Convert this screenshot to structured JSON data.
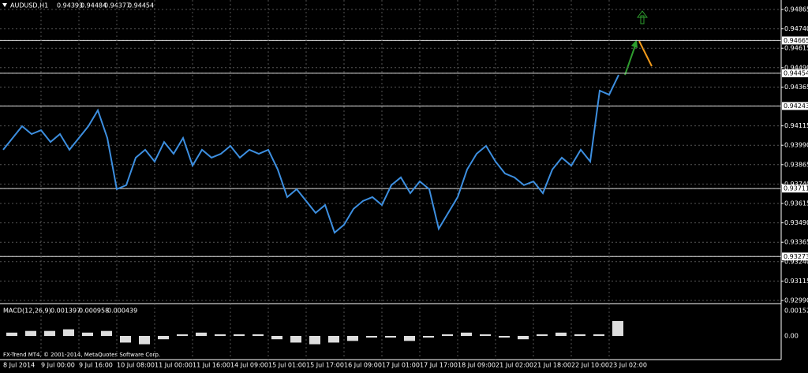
{
  "window": {
    "symbol": "AUDUSD,H1",
    "quote": [
      "0.94393",
      "0.94484",
      "0.94377",
      "0.94454"
    ]
  },
  "price_axis": {
    "labels": [
      {
        "value": 0.94865,
        "label": "0.94865"
      },
      {
        "value": 0.9474,
        "label": "0.94740"
      },
      {
        "value": 0.94665,
        "label": "0.94665",
        "line": true
      },
      {
        "value": 0.94615,
        "label": "0.94615"
      },
      {
        "value": 0.9449,
        "label": "0.94490"
      },
      {
        "value": 0.94454,
        "label": "0.94454",
        "line": true
      },
      {
        "value": 0.94365,
        "label": "0.94365"
      },
      {
        "value": 0.94243,
        "label": "0.94243",
        "line": true
      },
      {
        "value": 0.94115,
        "label": "0.94115"
      },
      {
        "value": 0.9399,
        "label": "0.93990"
      },
      {
        "value": 0.93865,
        "label": "0.93865"
      },
      {
        "value": 0.9374,
        "label": "0.93740"
      },
      {
        "value": 0.93711,
        "label": "0.93711",
        "line": true
      },
      {
        "value": 0.93615,
        "label": "0.93615"
      },
      {
        "value": 0.9349,
        "label": "0.93490"
      },
      {
        "value": 0.93365,
        "label": "0.93365"
      },
      {
        "value": 0.93273,
        "label": "0.93273",
        "line": true
      },
      {
        "value": 0.9324,
        "label": "0.93240"
      },
      {
        "value": 0.93115,
        "label": "0.93115"
      },
      {
        "value": 0.9299,
        "label": "0.92990"
      }
    ],
    "range": [
      0.9299,
      0.94865
    ]
  },
  "time_axis": [
    "8 Jul 2014",
    "9 Jul 00:00",
    "9 Jul 16:00",
    "10 Jul 08:00",
    "11 Jul 00:00",
    "11 Jul 16:00",
    "14 Jul 09:00",
    "15 Jul 01:00",
    "15 Jul 17:00",
    "16 Jul 09:00",
    "17 Jul 01:00",
    "17 Jul 17:00",
    "18 Jul 09:00",
    "21 Jul 02:00",
    "21 Jul 18:00",
    "22 Jul 10:00",
    "23 Jul 02:00"
  ],
  "price": {
    "color": "#3d8fe0",
    "closes": [
      0.93961,
      0.94037,
      0.94113,
      0.94062,
      0.94087,
      0.94011,
      0.94062,
      0.93961,
      0.94037,
      0.94113,
      0.94215,
      0.94037,
      0.93707,
      0.93733,
      0.9391,
      0.93961,
      0.93885,
      0.94011,
      0.93935,
      0.94037,
      0.93859,
      0.93961,
      0.9391,
      0.93935,
      0.93986,
      0.9391,
      0.93961,
      0.93935,
      0.93961,
      0.93834,
      0.93656,
      0.93707,
      0.93631,
      0.93554,
      0.93605,
      0.93427,
      0.93478,
      0.9358,
      0.93631,
      0.93656,
      0.93605,
      0.93733,
      0.93783,
      0.93681,
      0.93757,
      0.93707,
      0.93452,
      0.93554,
      0.93656,
      0.93834,
      0.93935,
      0.93986,
      0.93885,
      0.93808,
      0.93783,
      0.93733,
      0.93757,
      0.93681,
      0.93834,
      0.9391,
      0.93859,
      0.93961,
      0.93885,
      0.94342,
      0.94316,
      0.94443
    ]
  },
  "macd": {
    "title": "MACD(12,26,9)",
    "readings": [
      "0.001397",
      "0.000958",
      "0.000439"
    ],
    "axis": [
      {
        "value": 0.00152,
        "label": "0.00152"
      },
      {
        "value": 0,
        "label": "0.00"
      }
    ],
    "histogram": [
      0.0002,
      0.0003,
      0.0003,
      0.0004,
      0.0002,
      0.0003,
      -0.0004,
      -0.0005,
      -0.0002,
      0.0001,
      0.0002,
      0.0001,
      0.0001,
      0.0001,
      -0.0002,
      -0.0004,
      -0.0005,
      -0.0004,
      -0.0003,
      -0.0001,
      -0.0001,
      -0.0003,
      -0.0001,
      0.0001,
      0.0002,
      0.0001,
      -0.0001,
      -0.0002,
      0.0001,
      0.0002,
      0.0001,
      0.0001,
      0.0009
    ]
  },
  "footer": "FX-Trend MT4, © 2001-2014, MetaQuotes Software Corp."
}
